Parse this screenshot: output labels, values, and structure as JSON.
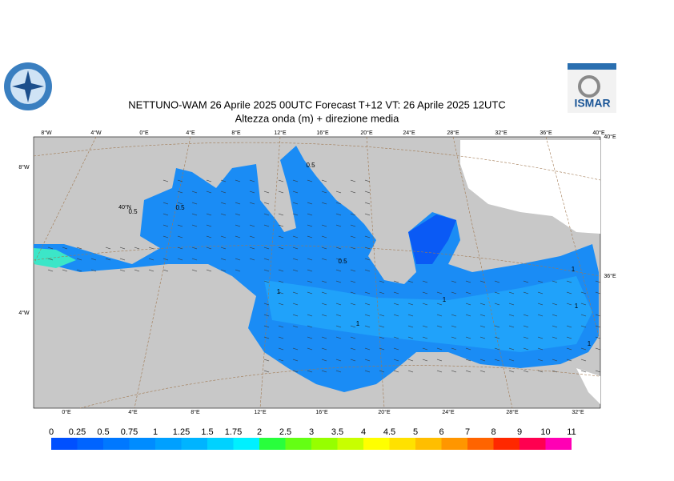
{
  "title": "NETTUNO-WAM  26   Aprile  2025 00UTC Forecast T+12 VT: 26   Aprile  2025 12UTC",
  "subtitle": "Altezza onda (m) + direzione media",
  "logo_right": "ISMAR",
  "map": {
    "top_labels": [
      "8°W",
      "4°W",
      "0°E",
      "4°E",
      "8°E",
      "12°E",
      "16°E",
      "20°E",
      "24°E",
      "28°E",
      "32°E",
      "36°E",
      "40°E"
    ],
    "bottom_labels": [
      "0°E",
      "4°E",
      "8°E",
      "12°E",
      "16°E",
      "20°E",
      "24°E",
      "28°E",
      "32°E"
    ],
    "left_labels": [
      "8°W",
      "4°W"
    ],
    "right_labels": [
      "40°E",
      "36°E"
    ],
    "lat_label": "40°N",
    "contour_labels": [
      "0.5",
      "0.5",
      "0.5",
      "0.5",
      "1",
      "1",
      "1",
      "1",
      "1",
      "1"
    ]
  },
  "colorbar": {
    "levels": [
      0,
      0.25,
      0.5,
      0.75,
      1,
      1.25,
      1.5,
      1.75,
      2,
      2.5,
      3,
      3.5,
      4,
      4.5,
      5,
      6,
      7,
      8,
      9,
      10,
      11
    ],
    "colors": [
      "#0050ff",
      "#0064ff",
      "#0078ff",
      "#008cff",
      "#00a0ff",
      "#00b4ff",
      "#00d2ff",
      "#00f0ff",
      "#28ff3c",
      "#64ff14",
      "#96ff00",
      "#c8ff00",
      "#ffff00",
      "#ffe100",
      "#ffbe00",
      "#ff9600",
      "#ff6400",
      "#ff2800",
      "#ff0050",
      "#ff00b4"
    ]
  }
}
